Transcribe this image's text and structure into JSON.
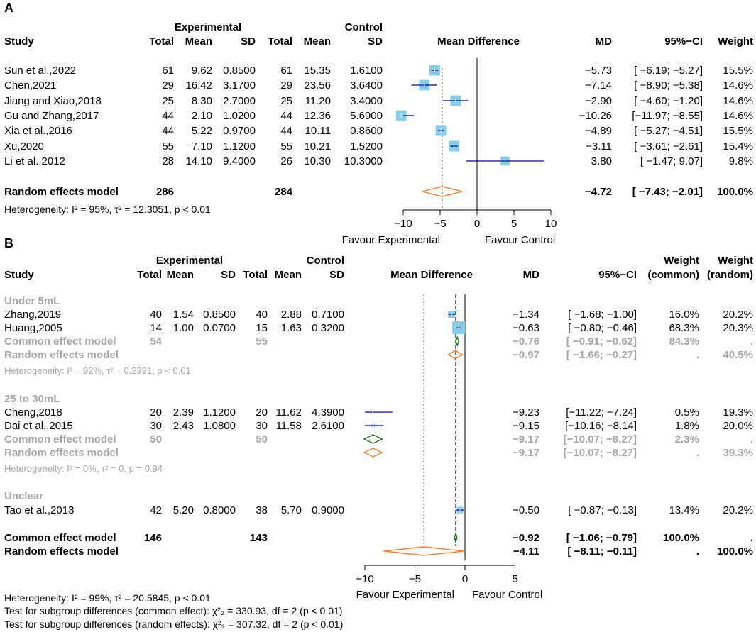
{
  "chart_data": [
    {
      "type": "forest",
      "panel_label": "A",
      "header": {
        "study": "Study",
        "group_exp": "Experimental",
        "group_ctrl": "Control",
        "total": "Total",
        "mean": "Mean",
        "sd": "SD",
        "plot_title": "Mean Difference",
        "md": "MD",
        "ci": "95%−CI",
        "weight": "Weight"
      },
      "x_range": [
        -10,
        10
      ],
      "x_ticks": [
        -10,
        -5,
        0,
        5,
        10
      ],
      "x_tick_labels": [
        "−10",
        "−5",
        "0",
        "5",
        "10"
      ],
      "favour_left": "Favour Experimental",
      "favour_right": "Favour Control",
      "studies": [
        {
          "name": "Sun et al.,2022",
          "e_total": "61",
          "e_mean": "9.62",
          "e_sd": "0.8500",
          "c_total": "61",
          "c_mean": "15.35",
          "c_sd": "1.6100",
          "md": -5.73,
          "lo": -6.19,
          "hi": -5.27,
          "w": 15.5,
          "md_text": "−5.73",
          "ci_text": "[ −6.19; −5.27]",
          "w_text": "15.5%"
        },
        {
          "name": "Chen,2021",
          "e_total": "29",
          "e_mean": "16.42",
          "e_sd": "3.1700",
          "c_total": "29",
          "c_mean": "23.56",
          "c_sd": "3.6400",
          "md": -7.14,
          "lo": -8.9,
          "hi": -5.38,
          "w": 14.6,
          "md_text": "−7.14",
          "ci_text": "[ −8.90; −5.38]",
          "w_text": "14.6%"
        },
        {
          "name": "Jiang and Xiao,2018",
          "e_total": "25",
          "e_mean": "8.30",
          "e_sd": "2.7000",
          "c_total": "25",
          "c_mean": "11.20",
          "c_sd": "3.4000",
          "md": -2.9,
          "lo": -4.6,
          "hi": -1.2,
          "w": 14.6,
          "md_text": "−2.90",
          "ci_text": "[ −4.60; −1.20]",
          "w_text": "14.6%"
        },
        {
          "name": "Gu and Zhang,2017",
          "e_total": "44",
          "e_mean": "2.10",
          "e_sd": "1.0200",
          "c_total": "44",
          "c_mean": "12.36",
          "c_sd": "5.6900",
          "md": -10.26,
          "lo": -11.97,
          "hi": -8.55,
          "w": 14.6,
          "md_text": "−10.26",
          "ci_text": "[−11.97; −8.55]",
          "w_text": "14.6%"
        },
        {
          "name": "Xia et al.,2016",
          "e_total": "44",
          "e_mean": "5.22",
          "e_sd": "0.9700",
          "c_total": "44",
          "c_mean": "10.11",
          "c_sd": "0.8600",
          "md": -4.89,
          "lo": -5.27,
          "hi": -4.51,
          "w": 15.5,
          "md_text": "−4.89",
          "ci_text": "[ −5.27; −4.51]",
          "w_text": "15.5%"
        },
        {
          "name": "Xu,2020",
          "e_total": "55",
          "e_mean": "7.10",
          "e_sd": "1.1200",
          "c_total": "55",
          "c_mean": "10.21",
          "c_sd": "1.5200",
          "md": -3.11,
          "lo": -3.61,
          "hi": -2.61,
          "w": 15.4,
          "md_text": "−3.11",
          "ci_text": "[ −3.61; −2.61]",
          "w_text": "15.4%"
        },
        {
          "name": "Li et al.,2012",
          "e_total": "28",
          "e_mean": "14.10",
          "e_sd": "9.4000",
          "c_total": "26",
          "c_mean": "10.30",
          "c_sd": "10.3000",
          "md": 3.8,
          "lo": -1.47,
          "hi": 9.07,
          "w": 9.8,
          "md_text": "3.80",
          "ci_text": "[ −1.47;  9.07]",
          "w_text": "9.8%"
        }
      ],
      "pooled": [
        {
          "label": "Random effects model",
          "kind": "random",
          "e_total": "286",
          "c_total": "284",
          "md": -4.72,
          "lo": -7.43,
          "hi": -2.01,
          "md_text": "−4.72",
          "ci_text": "[ −7.43; −2.01]",
          "w_text": "100.0%"
        }
      ],
      "heterogeneity": "Heterogeneity: I² = 95%, τ² = 12.3051, p < 0.01"
    },
    {
      "type": "forest",
      "panel_label": "B",
      "header": {
        "study": "Study",
        "group_exp": "Experimental",
        "group_ctrl": "Control",
        "total": "Total",
        "mean": "Mean",
        "sd": "SD",
        "plot_title": "Mean Difference",
        "md": "MD",
        "ci": "95%−CI",
        "weight": "Weight",
        "common": "(common)",
        "random": "(random)"
      },
      "x_range": [
        -10,
        5
      ],
      "x_ticks": [
        -10,
        -5,
        0,
        5
      ],
      "x_tick_labels": [
        "−10",
        "−5",
        "0",
        "5"
      ],
      "favour_left": "Favour Experimental",
      "favour_right": "Favour Control",
      "subgroups": [
        {
          "title": "Under 5mL",
          "studies": [
            {
              "name": "Zhang,2019",
              "e_total": "40",
              "e_mean": "1.54",
              "e_sd": "0.8500",
              "c_total": "40",
              "c_mean": "2.88",
              "c_sd": "0.7100",
              "md": -1.34,
              "lo": -1.68,
              "hi": -1.0,
              "w": 16.0,
              "md_text": "−1.34",
              "ci_text": "[ −1.68; −1.00]",
              "wc_text": "16.0%",
              "wr_text": "20.2%"
            },
            {
              "name": "Huang,2005",
              "e_total": "14",
              "e_mean": "1.00",
              "e_sd": "0.0700",
              "c_total": "15",
              "c_mean": "1.63",
              "c_sd": "0.3200",
              "md": -0.63,
              "lo": -0.8,
              "hi": -0.46,
              "w": 68.3,
              "md_text": "−0.63",
              "ci_text": "[ −0.80; −0.46]",
              "wc_text": "68.3%",
              "wr_text": "20.3%"
            }
          ],
          "common": {
            "label": "Common effect model",
            "e_total": "54",
            "c_total": "55",
            "md": -0.76,
            "lo": -0.91,
            "hi": -0.62,
            "md_text": "−0.76",
            "ci_text": "[ −0.91; −0.62]",
            "wc_text": "84.3%",
            "wr_text": "."
          },
          "random": {
            "label": "Random effects model",
            "md": -0.97,
            "lo": -1.66,
            "hi": -0.27,
            "md_text": "−0.97",
            "ci_text": "[ −1.66; −0.27]",
            "wc_text": ".",
            "wr_text": "40.5%"
          },
          "heterogeneity": "Heterogeneity: I² = 92%, τ² = 0.2331, p < 0.01"
        },
        {
          "title": "25 to 30mL",
          "studies": [
            {
              "name": "Cheng,2018",
              "e_total": "20",
              "e_mean": "2.39",
              "e_sd": "1.1200",
              "c_total": "20",
              "c_mean": "11.62",
              "c_sd": "4.3900",
              "md": -9.23,
              "lo": -11.22,
              "hi": -7.24,
              "w": 0.5,
              "md_text": "−9.23",
              "ci_text": "[−11.22; −7.24]",
              "wc_text": "0.5%",
              "wr_text": "19.3%"
            },
            {
              "name": "Dai et al.,2015",
              "e_total": "30",
              "e_mean": "2.43",
              "e_sd": "1.0800",
              "c_total": "30",
              "c_mean": "11.58",
              "c_sd": "2.6100",
              "md": -9.15,
              "lo": -10.16,
              "hi": -8.14,
              "w": 1.8,
              "md_text": "−9.15",
              "ci_text": "[−10.16; −8.14]",
              "wc_text": "1.8%",
              "wr_text": "20.0%"
            }
          ],
          "common": {
            "label": "Common effect model",
            "e_total": "50",
            "c_total": "50",
            "md": -9.17,
            "lo": -10.07,
            "hi": -8.27,
            "md_text": "−9.17",
            "ci_text": "[−10.07; −8.27]",
            "wc_text": "2.3%",
            "wr_text": "."
          },
          "random": {
            "label": "Random effects model",
            "md": -9.17,
            "lo": -10.07,
            "hi": -8.27,
            "md_text": "−9.17",
            "ci_text": "[−10.07; −8.27]",
            "wc_text": ".",
            "wr_text": "39.3%"
          },
          "heterogeneity": "Heterogeneity: I² = 0%, τ² = 0, p = 0.94"
        },
        {
          "title": "Unclear",
          "studies": [
            {
              "name": "Tao et al.,2013",
              "e_total": "42",
              "e_mean": "5.20",
              "e_sd": "0.8000",
              "c_total": "38",
              "c_mean": "5.70",
              "c_sd": "0.9000",
              "md": -0.5,
              "lo": -0.87,
              "hi": -0.13,
              "w": 13.4,
              "md_text": "−0.50",
              "ci_text": "[ −0.87; −0.13]",
              "wc_text": "13.4%",
              "wr_text": "20.2%"
            }
          ]
        }
      ],
      "overall": {
        "common": {
          "label": "Common effect model",
          "e_total": "146",
          "c_total": "143",
          "md": -0.92,
          "lo": -1.06,
          "hi": -0.79,
          "md_text": "−0.92",
          "ci_text": "[ −1.06; −0.79]",
          "wc_text": "100.0%",
          "wr_text": "."
        },
        "random": {
          "label": "Random effects model",
          "md": -4.11,
          "lo": -8.11,
          "hi": -0.11,
          "md_text": "−4.11",
          "ci_text": "[ −8.11; −0.11]",
          "wc_text": ".",
          "wr_text": "100.0%"
        }
      },
      "footer": [
        "Heterogeneity: I² = 99%, τ² = 20.5845, p < 0.01",
        "Test for subgroup differences (common effect): χ²₂ = 330.93, df = 2 (p < 0.01)",
        "Test for subgroup differences (random effects): χ²₂ = 307.32, df = 2 (p < 0.01)"
      ]
    }
  ],
  "colors": {
    "square": "#87CEEB",
    "ci_line": "#0000CD",
    "random_diamond": "#F57F2A",
    "common_diamond": "#1E7B1E",
    "gray_text": "#A6A6A6"
  }
}
